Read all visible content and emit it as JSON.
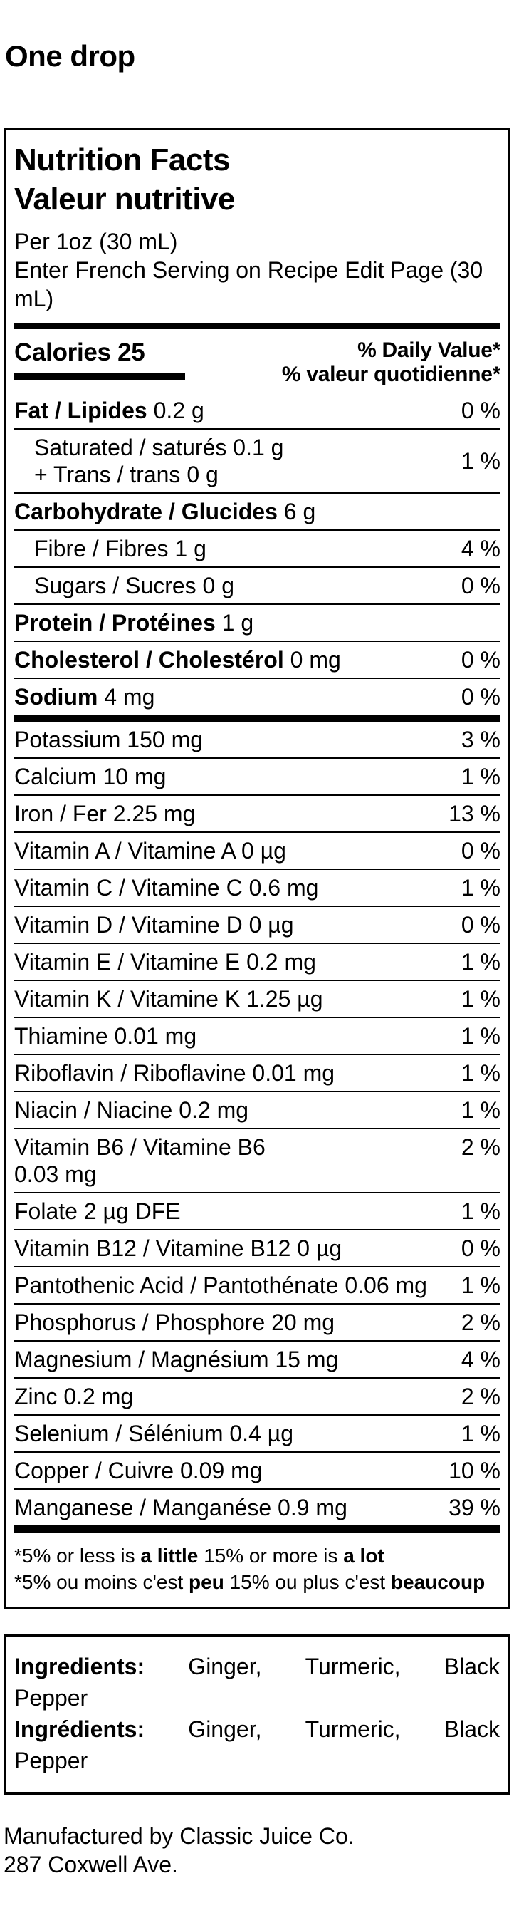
{
  "page": {
    "title": "One drop"
  },
  "nutrition_label": {
    "title_en": "Nutrition Facts",
    "title_fr": "Valeur nutritive",
    "serving_line1": "Per 1oz (30 mL)",
    "serving_line2": "Enter French Serving on Recipe Edit Page (30 mL)",
    "calories": {
      "label": "Calories 25",
      "dv_header_en": "% Daily Value*",
      "dv_header_fr": "% valeur quotidienne*"
    },
    "rows": [
      {
        "name": "Fat / Lipides",
        "amount": "0.2 g",
        "dv": "0 %",
        "bold": true
      },
      {
        "name": "Saturated / saturés",
        "amount": "0.1 g",
        "name2": "+ Trans / trans",
        "amount2": "0 g",
        "dv": "1 %",
        "indent": true,
        "dv_middle": true
      },
      {
        "name": "Carbohydrate / Glucides",
        "amount": "6 g",
        "dv": "",
        "bold": true
      },
      {
        "name": "Fibre / Fibres",
        "amount": "1 g",
        "dv": "4 %",
        "indent": true
      },
      {
        "name": "Sugars / Sucres",
        "amount": "0 g",
        "dv": "0 %",
        "indent": true
      },
      {
        "name": "Protein / Protéines",
        "amount": "1 g",
        "dv": "",
        "bold": true
      },
      {
        "name": "Cholesterol / Cholestérol",
        "amount": "0 mg",
        "dv": "0 %",
        "bold": true
      },
      {
        "name": "Sodium",
        "amount": "4 mg",
        "dv": "0 %",
        "bold": true
      },
      {
        "name": "Potassium",
        "amount": "150 mg",
        "dv": "3 %",
        "thick_before": true
      },
      {
        "name": "Calcium",
        "amount": "10 mg",
        "dv": "1 %"
      },
      {
        "name": "Iron / Fer",
        "amount": "2.25 mg",
        "dv": "13 %"
      },
      {
        "name": "Vitamin A / Vitamine A",
        "amount": "0 µg",
        "dv": "0 %"
      },
      {
        "name": "Vitamin C / Vitamine C",
        "amount": "0.6 mg",
        "dv": "1 %"
      },
      {
        "name": "Vitamin D / Vitamine D",
        "amount": "0 µg",
        "dv": "0 %"
      },
      {
        "name": "Vitamin E / Vitamine E",
        "amount": "0.2 mg",
        "dv": "1 %"
      },
      {
        "name": "Vitamin K / Vitamine K",
        "amount": "1.25 µg",
        "dv": "1 %"
      },
      {
        "name": "Thiamine",
        "amount": "0.01 mg",
        "dv": "1 %"
      },
      {
        "name": "Riboflavin / Riboflavine",
        "amount": "0.01 mg",
        "dv": "1 %"
      },
      {
        "name": "Niacin / Niacine",
        "amount": "0.2 mg",
        "dv": "1 %"
      },
      {
        "name": "Vitamin B6 / Vitamine B6",
        "amount": "",
        "amount2": "0.03 mg",
        "dv": "2 %"
      },
      {
        "name": "Folate",
        "amount": "2 µg DFE",
        "dv": "1 %"
      },
      {
        "name": "Vitamin B12 / Vitamine B12",
        "amount": "0 µg",
        "dv": "0 %"
      },
      {
        "name": "Pantothenic Acid / Pantothénate",
        "amount": "0.06 mg",
        "dv": "1 %"
      },
      {
        "name": "Phosphorus / Phosphore",
        "amount": "20 mg",
        "dv": "2 %"
      },
      {
        "name": "Magnesium / Magnésium",
        "amount": "15 mg",
        "dv": "4 %"
      },
      {
        "name": "Zinc",
        "amount": "0.2 mg",
        "dv": "2 %"
      },
      {
        "name": "Selenium / Sélénium",
        "amount": "0.4 µg",
        "dv": "1 %"
      },
      {
        "name": "Copper / Cuivre",
        "amount": "0.09 mg",
        "dv": "10 %"
      },
      {
        "name": "Manganese / Manganése",
        "amount": "0.9 mg",
        "dv": "39 %"
      }
    ],
    "footnote_en": {
      "t1": "*5% or less is ",
      "b1": "a little",
      "t2": " 15% or more is ",
      "b2": "a lot"
    },
    "footnote_fr": {
      "t1": "*5% ou moins c'est ",
      "b1": "peu",
      "t2": " 15% ou plus c'est ",
      "b2": "beaucoup"
    }
  },
  "ingredients": {
    "label_en": "Ingredients:",
    "label_fr": "Ingrédients:",
    "words": [
      "Ginger,",
      "Turmeric,",
      "Black"
    ],
    "last_word": "Pepper"
  },
  "footer": {
    "line1": "Manufactured by Classic Juice Co.",
    "line2": "287 Coxwell Ave."
  },
  "colors": {
    "text": "#000000",
    "background": "#ffffff"
  }
}
